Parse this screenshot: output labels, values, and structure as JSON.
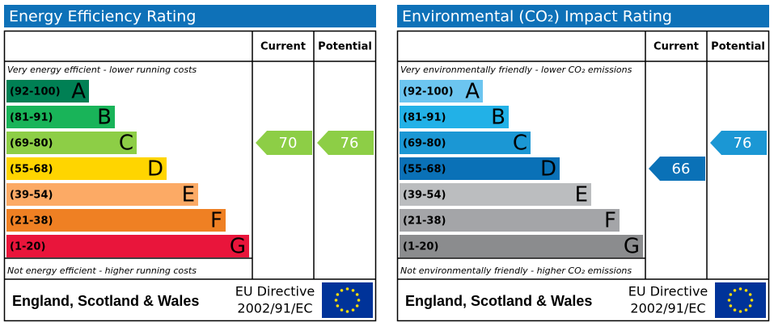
{
  "panels": [
    {
      "title": "Energy Efficiency Rating",
      "columns": [
        "Current",
        "Potential"
      ],
      "top_note": "Very energy efficient - lower running costs",
      "bottom_note": "Not energy efficient - higher running costs",
      "bands": [
        {
          "range": "(92-100)",
          "letter": "A",
          "color": "#008054"
        },
        {
          "range": "(81-91)",
          "letter": "B",
          "color": "#19b459"
        },
        {
          "range": "(69-80)",
          "letter": "C",
          "color": "#8dce46"
        },
        {
          "range": "(55-68)",
          "letter": "D",
          "color": "#ffd500"
        },
        {
          "range": "(39-54)",
          "letter": "E",
          "color": "#fcaa65"
        },
        {
          "range": "(21-38)",
          "letter": "F",
          "color": "#ef8023"
        },
        {
          "range": "(1-20)",
          "letter": "G",
          "color": "#e9153b"
        }
      ],
      "current": 70,
      "potential": 76,
      "region": "England, Scotland & Wales",
      "directive": [
        "EU Directive",
        "2002/91/EC"
      ]
    },
    {
      "title": "Environmental (CO₂) Impact Rating",
      "columns": [
        "Current",
        "Potential"
      ],
      "top_note": "Very environmentally friendly - lower CO₂ emissions",
      "bottom_note": "Not environmentally friendly - higher CO₂ emissions",
      "bands": [
        {
          "range": "(92-100)",
          "letter": "A",
          "color": "#6cc5f0"
        },
        {
          "range": "(81-91)",
          "letter": "B",
          "color": "#22b1e7"
        },
        {
          "range": "(69-80)",
          "letter": "C",
          "color": "#1b97d4"
        },
        {
          "range": "(55-68)",
          "letter": "D",
          "color": "#0a71b7"
        },
        {
          "range": "(39-54)",
          "letter": "E",
          "color": "#bbbdbf"
        },
        {
          "range": "(21-38)",
          "letter": "F",
          "color": "#a4a5a8"
        },
        {
          "range": "(1-20)",
          "letter": "G",
          "color": "#8b8c8e"
        }
      ],
      "current": 66,
      "potential": 76,
      "region": "England, Scotland & Wales",
      "directive": [
        "EU Directive",
        "2002/91/EC"
      ]
    }
  ]
}
